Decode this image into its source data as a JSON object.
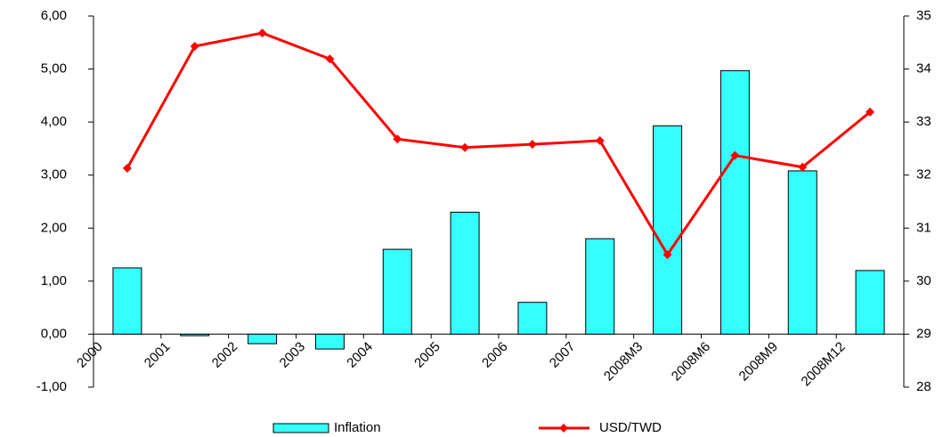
{
  "chart_data": {
    "type": "bar_line",
    "categories": [
      "2000",
      "2001",
      "2002",
      "2003",
      "2004",
      "2005",
      "2006",
      "2007",
      "2008M3",
      "2008M6",
      "2008M9",
      "2008M12"
    ],
    "series": [
      {
        "name": "Inflation",
        "type": "bar",
        "color": "#33ffff",
        "axis": "y",
        "values": [
          1.25,
          -0.03,
          -0.18,
          -0.28,
          1.6,
          2.3,
          0.6,
          1.8,
          3.93,
          4.97,
          3.08,
          1.2
        ]
      },
      {
        "name": "USD/TWD",
        "type": "line",
        "color": "#ff0000",
        "axis": "y2",
        "values": [
          32.13,
          34.43,
          34.68,
          34.19,
          32.68,
          32.52,
          32.58,
          32.65,
          30.5,
          32.37,
          32.15,
          33.19
        ]
      }
    ],
    "ylim": [
      -1,
      6
    ],
    "yticks": [
      {
        "value": -1,
        "label": "-1,00"
      },
      {
        "value": 0,
        "label": "0,00"
      },
      {
        "value": 1,
        "label": "1,00"
      },
      {
        "value": 2,
        "label": "2,00"
      },
      {
        "value": 3,
        "label": "3,00"
      },
      {
        "value": 4,
        "label": "4,00"
      },
      {
        "value": 5,
        "label": "5,00"
      },
      {
        "value": 6,
        "label": "6,00"
      }
    ],
    "y2lim": [
      28,
      35
    ],
    "y2ticks": [
      28,
      29,
      30,
      31,
      32,
      33,
      34,
      35
    ],
    "legend": "bottom",
    "grid": false
  }
}
